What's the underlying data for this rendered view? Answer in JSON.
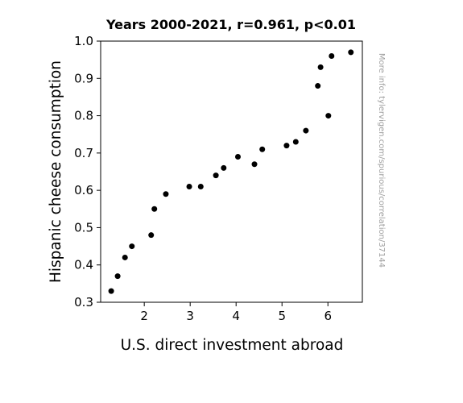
{
  "chart_data": {
    "type": "scatter",
    "title": "Years 2000-2021, r=0.961, p<0.01",
    "xlabel": "U.S. direct investment abroad",
    "ylabel": "Hispanic cheese consumption",
    "xlim": [
      1.05,
      6.75
    ],
    "ylim": [
      0.3,
      1.0
    ],
    "xticks": [
      "2",
      "3",
      "4",
      "5",
      "6"
    ],
    "yticks": [
      "0.3",
      "0.4",
      "0.5",
      "0.6",
      "0.7",
      "0.8",
      "0.9",
      "1.0"
    ],
    "grid": false,
    "marker_color": "#000000",
    "points": [
      {
        "x": 1.28,
        "y": 0.33
      },
      {
        "x": 1.42,
        "y": 0.37
      },
      {
        "x": 1.58,
        "y": 0.42
      },
      {
        "x": 1.73,
        "y": 0.45
      },
      {
        "x": 2.15,
        "y": 0.48
      },
      {
        "x": 2.22,
        "y": 0.55
      },
      {
        "x": 2.47,
        "y": 0.59
      },
      {
        "x": 2.98,
        "y": 0.61
      },
      {
        "x": 3.23,
        "y": 0.61
      },
      {
        "x": 3.56,
        "y": 0.64
      },
      {
        "x": 3.73,
        "y": 0.66
      },
      {
        "x": 4.04,
        "y": 0.69
      },
      {
        "x": 4.4,
        "y": 0.67
      },
      {
        "x": 4.57,
        "y": 0.71
      },
      {
        "x": 5.1,
        "y": 0.72
      },
      {
        "x": 5.3,
        "y": 0.73
      },
      {
        "x": 5.52,
        "y": 0.76
      },
      {
        "x": 5.78,
        "y": 0.88
      },
      {
        "x": 5.84,
        "y": 0.93
      },
      {
        "x": 6.01,
        "y": 0.8
      },
      {
        "x": 6.08,
        "y": 0.96
      },
      {
        "x": 6.5,
        "y": 0.97
      }
    ]
  },
  "side_note": "More info: tylervigen.com/spurious/correlation/37144"
}
